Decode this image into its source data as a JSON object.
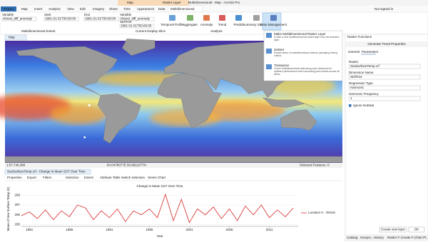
{
  "window": {
    "title": "Multidimensional - Map - ArcGIS Pro",
    "signin": "Not signed in"
  },
  "ribbon": {
    "context_tabs": [
      "Map",
      "Raster Layer"
    ],
    "tabs": [
      "Project",
      "Map",
      "Insert",
      "Analysis",
      "View",
      "Edit",
      "Imagery",
      "Share",
      "Time",
      "Appearance",
      "Data",
      "Multidimensional"
    ],
    "fields": [
      {
        "label": "Variable",
        "value": "cfsrsst_diff_anomaly"
      },
      {
        "label": "Start",
        "value": "1981-01-01T00:00:00"
      },
      {
        "label": "End",
        "value": "1981-01-01T00:00:00"
      },
      {
        "label": "Variable",
        "value": "cfsrsst_diff_anomaly"
      },
      {
        "label": "StdTime",
        "value": "1981-01-01T00:00:00"
      }
    ],
    "groups": [
      "Multidimensional Extent",
      "Current Display Slice",
      "Analysis"
    ],
    "buttons": [
      "Temporal Profile",
      "Aggregate",
      "Anomaly",
      "Trend",
      "Predict",
      "Summary Statistics",
      "Data Management"
    ]
  },
  "menu": {
    "items": [
      {
        "title": "Make Multidimensional Raster Layer",
        "description": "Create a new multidimensional raster layer from the selected layer."
      },
      {
        "title": "Subset",
        "description": "Extract slices of multidimensional data by specifying driving criteria."
      },
      {
        "title": "Transpose",
        "description": "Chunk multidimensional data along each dimension to optimize performance when accessing pixel values across all slices."
      }
    ]
  },
  "map": {
    "tab": "Map",
    "scale": "1:57,746,380",
    "coordinates": "84.0478077E 56.8811077N",
    "selected": "Selected Features: 0"
  },
  "chart_pane": {
    "tab": "SeaSurfaceTemp.crf - Change in Mean SST Over Time",
    "toolbar": [
      "Properties",
      "Export",
      "Filters",
      "Selection",
      "Extent",
      "Attribute Table",
      "Switch Selection",
      "Series Chart"
    ]
  },
  "chart_data": {
    "type": "line",
    "title": "Change in Mean SST Over Time",
    "x_label": "Year",
    "y_label": "Mean of Sea Surface Temp (K)",
    "x": [
      1980,
      1981,
      1982,
      1983,
      1984,
      1985,
      1986,
      1987,
      1988,
      1989,
      1990,
      1991,
      1992,
      1993,
      1994,
      1995,
      1996,
      1997,
      1998,
      1999,
      2000,
      2001,
      2002,
      2003,
      2004,
      2005,
      2006,
      2007,
      2008,
      2009,
      2010,
      2011,
      2012,
      2013,
      2014
    ],
    "series": [
      {
        "name": "Location 0 - cfsrsst",
        "color": "#d62728",
        "values": [
          295.9,
          296.3,
          295.6,
          296.5,
          295.5,
          296.4,
          295.8,
          297.0,
          296.7,
          295.5,
          296.4,
          295.7,
          296.6,
          295.3,
          296.4,
          296.0,
          296.6,
          295.7,
          298.1,
          295.4,
          297.6,
          295.2,
          296.6,
          296.0,
          296.8,
          295.6,
          296.6,
          295.4,
          296.9,
          296.0,
          297.0,
          295.7,
          296.5,
          295.8,
          296.7
        ]
      }
    ],
    "xlim": [
      1980,
      2014.6
    ],
    "ylim": [
      294.8,
      298.4
    ],
    "xticks": [
      1981,
      1986,
      1991,
      1996,
      2001,
      2006,
      2011
    ],
    "yticks": [
      295,
      296,
      297,
      298
    ]
  },
  "panel": {
    "header": "Raster Functions",
    "title": "Generate Trend Properties",
    "tabs": [
      "General",
      "Parameters"
    ],
    "fields": [
      {
        "label": "Raster",
        "value": "SeaSurfaceTemp.crf"
      },
      {
        "label": "Dimension Name",
        "value": "StdTime"
      },
      {
        "label": "Regression Type",
        "value": "Harmonic"
      },
      {
        "label": "Harmonic Frequency",
        "value": "1"
      }
    ],
    "checkbox": "Ignore NoData",
    "create": "Create new layer",
    "ok": "OK"
  },
  "bottom_tabs": [
    "Catalog",
    "Geopro...",
    "History",
    "Raster F...",
    "Create F...",
    "Chart Pr..."
  ]
}
